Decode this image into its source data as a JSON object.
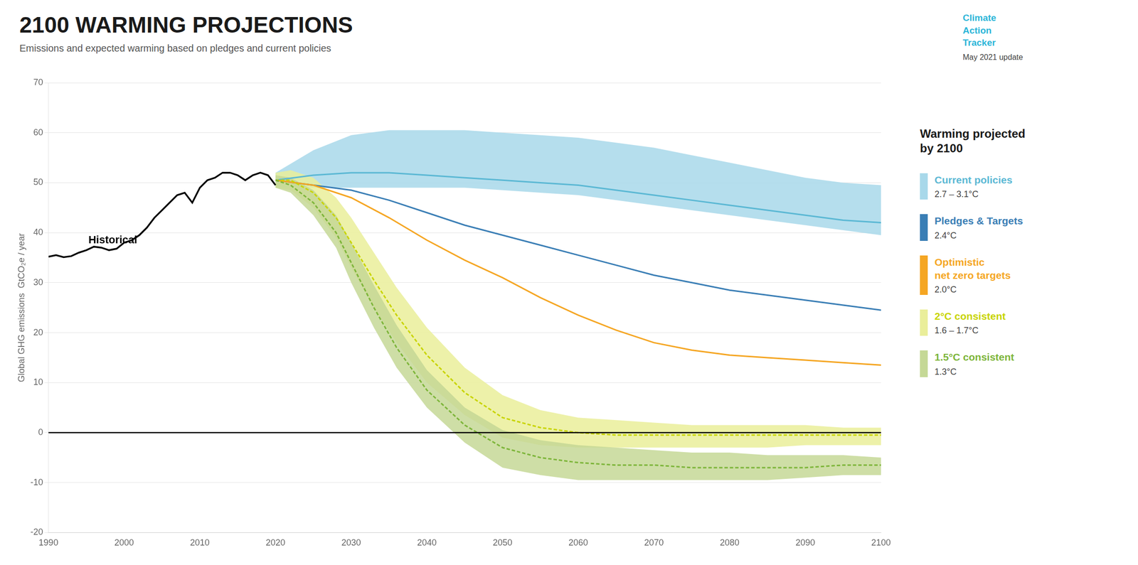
{
  "chart_data": {
    "type": "line",
    "title": "2100 WARMING PROJECTIONS",
    "subtitle": "Emissions and expected warming based on pledges and current policies",
    "y_label": "Global GHG emissions  GtCO₂e / year",
    "xlim": [
      1990,
      2100
    ],
    "xticks": [
      1990,
      2000,
      2010,
      2020,
      2030,
      2040,
      2050,
      2060,
      2070,
      2080,
      2090,
      2100
    ],
    "ylim": [
      -20,
      70
    ],
    "yticks": [
      -20,
      -10,
      0,
      10,
      20,
      30,
      40,
      50,
      60,
      70
    ],
    "grid": "y",
    "legend": "right",
    "legend_title": "Warming projected\nby 2100",
    "series": [
      {
        "color": "#000000",
        "x": [
          1990,
          1991,
          1992,
          1993,
          1994,
          1995,
          1996,
          1997,
          1998,
          1999,
          2000,
          2001,
          2002,
          2003,
          2004,
          2005,
          2006,
          2007,
          2008,
          2009,
          2010,
          2011,
          2012,
          2013,
          2014,
          2015,
          2016,
          2017,
          2018,
          2019,
          2020
        ],
        "values": [
          35.2,
          35.5,
          35.1,
          35.3,
          36.0,
          36.5,
          37.2,
          37.0,
          36.5,
          36.8,
          38.0,
          38.5,
          39.5,
          41.0,
          43.0,
          44.5,
          46.0,
          47.5,
          48.0,
          46.0,
          49.0,
          50.5,
          51.0,
          52.0,
          52.0,
          51.5,
          50.5,
          51.5,
          52.0,
          51.5,
          49.5
        ]
      },
      {
        "name": "Current policies",
        "warming": "2.7 – 3.1°C",
        "color": "#5BB8D4",
        "band_color": "#A8D8EA",
        "x": [
          2020,
          2025,
          2030,
          2035,
          2040,
          2045,
          2050,
          2055,
          2060,
          2065,
          2070,
          2075,
          2080,
          2085,
          2090,
          2095,
          2100
        ],
        "values": [
          50.5,
          51.5,
          52.0,
          52.0,
          51.5,
          51.0,
          50.5,
          50.0,
          49.5,
          48.5,
          47.5,
          46.5,
          45.5,
          44.5,
          43.5,
          42.5,
          42.0
        ],
        "upper": [
          52.0,
          56.5,
          59.5,
          60.5,
          60.5,
          60.5,
          60.0,
          59.5,
          59.0,
          58.0,
          57.0,
          55.5,
          54.0,
          52.5,
          51.0,
          50.0,
          49.5
        ],
        "lower": [
          49.0,
          49.0,
          49.0,
          49.0,
          49.0,
          49.0,
          48.5,
          48.0,
          47.5,
          46.5,
          45.5,
          44.5,
          43.5,
          42.5,
          41.5,
          40.5,
          39.5
        ]
      },
      {
        "name": "Pledges & Targets",
        "warming": "2.4°C",
        "color": "#3A7EB5",
        "x": [
          2020,
          2025,
          2030,
          2035,
          2040,
          2045,
          2050,
          2055,
          2060,
          2065,
          2070,
          2075,
          2080,
          2085,
          2090,
          2095,
          2100
        ],
        "values": [
          50.5,
          49.5,
          48.5,
          46.5,
          44.0,
          41.5,
          39.5,
          37.5,
          35.5,
          33.5,
          31.5,
          30.0,
          28.5,
          27.5,
          26.5,
          25.5,
          24.5
        ]
      },
      {
        "name": "Optimistic\nnet zero targets",
        "warming": "2.0°C",
        "color": "#F5A623",
        "x": [
          2020,
          2025,
          2030,
          2035,
          2040,
          2045,
          2050,
          2055,
          2060,
          2065,
          2070,
          2075,
          2080,
          2085,
          2090,
          2095,
          2100
        ],
        "values": [
          50.5,
          49.5,
          47.0,
          43.0,
          38.5,
          34.5,
          31.0,
          27.0,
          23.5,
          20.5,
          18.0,
          16.5,
          15.5,
          15.0,
          14.5,
          14.0,
          13.5
        ]
      },
      {
        "name": "2°C consistent",
        "warming": "1.6 – 1.7°C",
        "color": "#C8D400",
        "band_color": "#EAEE9A",
        "line_style": "dashed",
        "x": [
          2020,
          2022,
          2025,
          2028,
          2030,
          2033,
          2036,
          2040,
          2045,
          2050,
          2055,
          2060,
          2065,
          2070,
          2075,
          2080,
          2085,
          2090,
          2095,
          2100
        ],
        "values": [
          50.5,
          50.5,
          48.0,
          43.0,
          38.0,
          30.5,
          23.5,
          15.5,
          8.0,
          3.0,
          1.0,
          0.0,
          -0.5,
          -0.5,
          -0.5,
          -0.5,
          -0.5,
          -0.5,
          -0.5,
          -0.5
        ],
        "upper": [
          52.0,
          52.5,
          51.0,
          47.0,
          43.0,
          36.0,
          29.0,
          21.0,
          13.0,
          7.5,
          4.5,
          3.0,
          2.5,
          2.0,
          1.5,
          1.5,
          1.5,
          1.5,
          1.0,
          1.0
        ],
        "lower": [
          49.0,
          48.5,
          45.0,
          39.0,
          33.0,
          25.0,
          18.0,
          10.0,
          3.5,
          -1.0,
          -2.5,
          -3.0,
          -3.0,
          -3.0,
          -3.0,
          -3.0,
          -3.0,
          -2.5,
          -2.5,
          -2.5
        ]
      },
      {
        "name": "1.5°C consistent",
        "warming": "1.3°C",
        "color": "#7DB53A",
        "band_color": "#C5D896",
        "line_style": "dashed",
        "x": [
          2020,
          2022,
          2025,
          2028,
          2030,
          2033,
          2036,
          2040,
          2045,
          2050,
          2055,
          2060,
          2065,
          2070,
          2075,
          2080,
          2085,
          2090,
          2095,
          2100
        ],
        "values": [
          50.5,
          49.5,
          46.0,
          40.0,
          34.0,
          25.0,
          17.0,
          8.5,
          1.5,
          -3.0,
          -5.0,
          -6.0,
          -6.5,
          -6.5,
          -7.0,
          -7.0,
          -7.0,
          -7.0,
          -6.5,
          -6.5
        ],
        "upper": [
          51.5,
          51.0,
          48.5,
          43.5,
          38.0,
          29.5,
          21.5,
          12.5,
          5.0,
          0.5,
          -1.5,
          -2.5,
          -3.0,
          -3.5,
          -4.0,
          -4.0,
          -4.5,
          -4.5,
          -4.5,
          -5.0
        ],
        "lower": [
          49.0,
          48.0,
          43.5,
          37.0,
          30.0,
          21.0,
          13.0,
          5.0,
          -2.0,
          -7.0,
          -8.5,
          -9.5,
          -9.5,
          -9.5,
          -9.5,
          -9.5,
          -9.5,
          -9.0,
          -8.5,
          -8.5
        ]
      }
    ],
    "reference_lines": [
      0
    ],
    "annotations": [
      {
        "text": "Historical",
        "x": 1998.5,
        "y": 37.0
      }
    ],
    "logo_text": "Climate\nAction\nTracker",
    "date_note": "May 2021 update"
  }
}
